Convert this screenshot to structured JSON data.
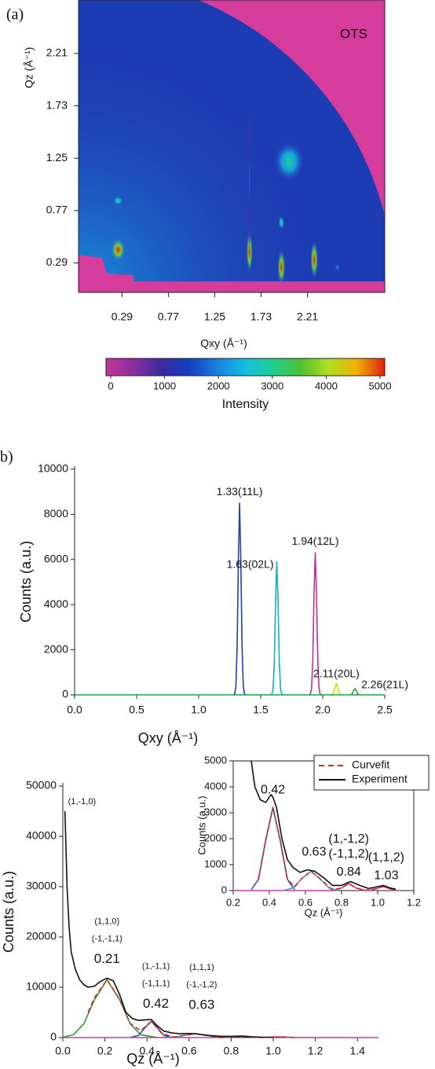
{
  "chart_data": [
    {
      "type": "heatmap",
      "panel_label": "(a)",
      "annotation": "OTS",
      "xlabel": "Qxy (Å⁻¹)",
      "ylabel": "Qz (Å⁻¹)",
      "xlim": [
        -0.16,
        3.01
      ],
      "ylim": [
        0.02,
        2.7
      ],
      "xticks": [
        0.29,
        0.77,
        1.25,
        1.73,
        2.21
      ],
      "yticks": [
        0.29,
        0.77,
        1.25,
        1.73,
        2.21
      ],
      "x": [
        0.25,
        0.25,
        1.61,
        1.61,
        1.94,
        1.94,
        2.02,
        2.28,
        2.52
      ],
      "y": [
        0.41,
        0.86,
        0.39,
        1.04,
        0.25,
        0.66,
        1.22,
        0.32,
        0.25
      ],
      "values": [
        5000,
        3200,
        5000,
        1800,
        5000,
        3200,
        3000,
        5000,
        2200
      ],
      "colorbar_label": "Intensity",
      "zlim": [
        0,
        5000
      ],
      "zticks": [
        0,
        1000,
        2000,
        3000,
        4000,
        5000
      ],
      "colorscale": [
        "#c4359b",
        "#8a2ea0",
        "#3a2aa0",
        "#1040c0",
        "#1a80e0",
        "#10c0e0",
        "#20d090",
        "#50c030",
        "#b0e020",
        "#f0b000",
        "#e02010"
      ],
      "background_color": "#1c3cb4",
      "mask_color": "#d63c9c"
    },
    {
      "type": "line",
      "panel_label": "b)",
      "xlabel": "Qxy (Å⁻¹)",
      "ylabel": "Counts (a.u.)",
      "xlim": [
        0,
        2.5
      ],
      "ylim": [
        0,
        10000
      ],
      "xticks": [
        {
          "value": 0,
          "label": "0.0"
        },
        {
          "value": 0.5,
          "label": "0.5"
        },
        {
          "value": 1,
          "label": "1.0"
        },
        {
          "value": 1.5,
          "label": "1.5"
        },
        {
          "value": 2,
          "label": "2.0"
        },
        {
          "value": 2.5,
          "label": "2.5"
        }
      ],
      "yticks": [
        0,
        2000,
        4000,
        6000,
        8000,
        10000
      ],
      "series": [
        {
          "color": "#2040a8",
          "labels": [
            "1.33(11L)"
          ],
          "x": [
            1.28,
            1.29,
            1.3,
            1.31,
            1.32,
            1.33,
            1.34,
            1.35,
            1.36,
            1.37,
            1.38
          ],
          "values": [
            0,
            34,
            374,
            2125,
            6010,
            8500,
            6010,
            2125,
            374,
            34,
            0
          ]
        },
        {
          "color": "#10b0c8",
          "labels": [
            "1.63(02L)"
          ],
          "x": [
            1.58,
            1.59,
            1.6,
            1.61,
            1.62,
            1.63,
            1.64,
            1.65,
            1.66,
            1.67,
            1.68
          ],
          "values": [
            0,
            24,
            260,
            1475,
            4171,
            5900,
            4171,
            1475,
            260,
            24,
            0
          ]
        },
        {
          "color": "#c0309a",
          "labels": [
            "1.94(12L)"
          ],
          "x": [
            1.89,
            1.9,
            1.91,
            1.92,
            1.93,
            1.94,
            1.95,
            1.96,
            1.97,
            1.98,
            1.99
          ],
          "values": [
            0,
            25,
            277,
            1575,
            4454,
            6300,
            4454,
            1575,
            277,
            25,
            0
          ]
        },
        {
          "color": "#e0d000",
          "labels": [
            "2.11(20L)"
          ],
          "x": [
            2.06,
            2.07,
            2.08,
            2.09,
            2.1,
            2.11,
            2.12,
            2.13,
            2.14,
            2.15,
            2.16
          ],
          "values": [
            0,
            2,
            22,
            125,
            354,
            500,
            354,
            125,
            22,
            2,
            0
          ]
        },
        {
          "color": "#20a040",
          "labels": [
            "2.26(21L)"
          ],
          "x": [
            0,
            2.22,
            2.23,
            2.24,
            2.25,
            2.26,
            2.27,
            2.28,
            2.29,
            2.3,
            2.5
          ],
          "values": [
            0,
            1,
            12,
            70,
            198,
            280,
            198,
            70,
            12,
            1,
            0
          ]
        }
      ]
    },
    {
      "type": "line",
      "xlabel": "Qz (Å⁻¹)",
      "ylabel": "Counts (a.u.)",
      "xlim": [
        0,
        1.5
      ],
      "ylim": [
        0,
        50000
      ],
      "xticks": [
        {
          "value": 0,
          "label": "0.0"
        },
        {
          "value": 0.2,
          "label": "0.2"
        },
        {
          "value": 0.4,
          "label": "0.4"
        },
        {
          "value": 0.6,
          "label": "0.6"
        },
        {
          "value": 0.8,
          "label": "0.8"
        },
        {
          "value": 1,
          "label": "1.0"
        },
        {
          "value": 1.2,
          "label": "1.2"
        },
        {
          "value": 1.4,
          "label": "1.4"
        }
      ],
      "yticks": [
        0,
        10000,
        20000,
        30000,
        40000,
        50000
      ],
      "series": [
        {
          "color": "#2a9a3a",
          "labels": [
            "(1,1,0)",
            "(-1,-1,1)",
            "0.21"
          ],
          "x": [
            0,
            0.05,
            0.1,
            0.15,
            0.21,
            0.27,
            0.32,
            0.37,
            0.45
          ],
          "values": [
            62,
            555,
            2750,
            7510,
            11500,
            7510,
            2750,
            555,
            13
          ]
        },
        {
          "color": "#3050b0",
          "labels": [
            "(1,-1,1)",
            "(-1,1,1)",
            "0.42"
          ],
          "x": [
            0.32,
            0.36,
            0.39,
            0.42,
            0.45,
            0.48,
            0.52
          ],
          "values": [
            12,
            433,
            1942,
            3200,
            1942,
            433,
            12
          ]
        },
        {
          "color": "#30b0c8",
          "labels": [
            "(1,1,1)",
            "(-1,-1,2)",
            "0.63"
          ],
          "x": [
            0.48,
            0.53,
            0.58,
            0.63,
            0.68,
            0.73,
            0.78
          ],
          "values": [
            8,
            101,
            455,
            750,
            455,
            101,
            8
          ]
        },
        {
          "color": "#c040a0",
          "x": [
            0,
            0.7,
            0.75,
            0.8,
            0.85,
            0.9,
            0.95,
            1.0,
            1.03,
            1.06,
            1.1,
            1.5
          ],
          "values": [
            0,
            0,
            5,
            100,
            280,
            100,
            10,
            90,
            150,
            90,
            10,
            0
          ]
        },
        {
          "color": "#e02020",
          "linestyle": "dashed",
          "x": [
            0.12,
            0.15,
            0.21,
            0.27,
            0.32,
            0.37,
            0.42,
            0.47,
            0.53,
            0.58,
            0.63,
            0.68,
            0.75,
            0.8,
            0.85,
            0.9,
            0.95,
            1.0,
            1.03,
            1.1
          ],
          "values": [
            5000,
            7900,
            11500,
            7560,
            2770,
            1360,
            3210,
            820,
            110,
            460,
            750,
            460,
            20,
            100,
            280,
            100,
            10,
            90,
            150,
            10
          ]
        },
        {
          "color": "#111111",
          "labels": [
            "(1,-1,0)"
          ],
          "x": [
            0.01,
            0.015,
            0.02,
            0.03,
            0.04,
            0.06,
            0.08,
            0.1,
            0.12,
            0.15,
            0.18,
            0.21,
            0.24,
            0.27,
            0.3,
            0.33,
            0.36,
            0.39,
            0.42,
            0.45,
            0.48,
            0.52,
            0.56,
            0.6,
            0.63,
            0.66,
            0.7,
            0.75,
            0.8,
            0.85,
            0.9,
            0.95,
            1.0
          ],
          "values": [
            45000,
            38000,
            30000,
            22000,
            17000,
            13500,
            11500,
            10500,
            10000,
            10200,
            11200,
            11800,
            11300,
            8500,
            5000,
            3800,
            3400,
            3500,
            3600,
            2300,
            1300,
            900,
            750,
            800,
            780,
            600,
            400,
            250,
            250,
            300,
            150,
            80,
            50
          ]
        }
      ]
    },
    {
      "type": "line",
      "xlabel": "Qz (Å⁻¹)",
      "ylabel": "Counts (a.u.)",
      "legend": "upper right",
      "xlim": [
        0.2,
        1.2
      ],
      "ylim": [
        0,
        5000
      ],
      "xticks": [
        0.2,
        0.4,
        0.6,
        0.8,
        {
          "value": 1,
          "label": "1.0"
        },
        1.2
      ],
      "yticks": [
        0,
        1000,
        2000,
        3000,
        4000,
        5000
      ],
      "series": [
        {
          "color": "#c040a0",
          "labels": [
            "(1,-1,2)",
            "(-1,1,2)",
            "0.84"
          ],
          "x": [
            0.2,
            0.7,
            0.75,
            0.8,
            0.84,
            0.88,
            0.93,
            0.97
          ],
          "values": [
            0,
            0,
            5,
            100,
            280,
            100,
            10,
            0
          ]
        },
        {
          "color": "#c040a0",
          "labels": [
            "(1,1,2)",
            "1.03"
          ],
          "x": [
            0.95,
            0.99,
            1.03,
            1.07,
            1.1
          ],
          "values": [
            0,
            70,
            150,
            70,
            10
          ]
        },
        {
          "color": "#3050b0",
          "labels": [
            "0.42"
          ],
          "x": [
            0.3,
            0.34,
            0.38,
            0.42,
            0.46,
            0.5,
            0.54
          ],
          "values": [
            35,
            433,
            1942,
            3200,
            1942,
            433,
            35
          ]
        },
        {
          "color": "#30b0c8",
          "labels": [
            "0.63"
          ],
          "x": [
            0.48,
            0.53,
            0.58,
            0.63,
            0.68,
            0.73,
            0.78
          ],
          "values": [
            8,
            101,
            455,
            750,
            455,
            101,
            8
          ]
        },
        {
          "name": "Curvefit",
          "color": "#e02020",
          "linestyle": "dashed",
          "x": [
            0.34,
            0.38,
            0.42,
            0.46,
            0.5,
            0.54,
            0.58,
            0.63,
            0.68,
            0.75,
            0.8,
            0.84,
            0.88,
            0.93,
            0.99,
            1.03,
            1.07,
            1.1
          ],
          "values": [
            440,
            1950,
            3210,
            1950,
            450,
            140,
            460,
            750,
            460,
            20,
            100,
            280,
            100,
            10,
            70,
            150,
            70,
            10
          ]
        },
        {
          "name": "Experiment",
          "color": "#111111",
          "x": [
            0.3,
            0.32,
            0.35,
            0.38,
            0.41,
            0.42,
            0.44,
            0.47,
            0.5,
            0.53,
            0.57,
            0.61,
            0.65,
            0.7,
            0.75,
            0.8,
            0.85,
            0.9,
            0.95,
            1.0,
            1.03,
            1.07,
            1.1
          ],
          "values": [
            5000,
            4000,
            3500,
            3400,
            3700,
            3600,
            3200,
            2000,
            1200,
            900,
            700,
            800,
            750,
            500,
            200,
            200,
            350,
            200,
            80,
            150,
            200,
            100,
            50
          ]
        }
      ]
    }
  ]
}
